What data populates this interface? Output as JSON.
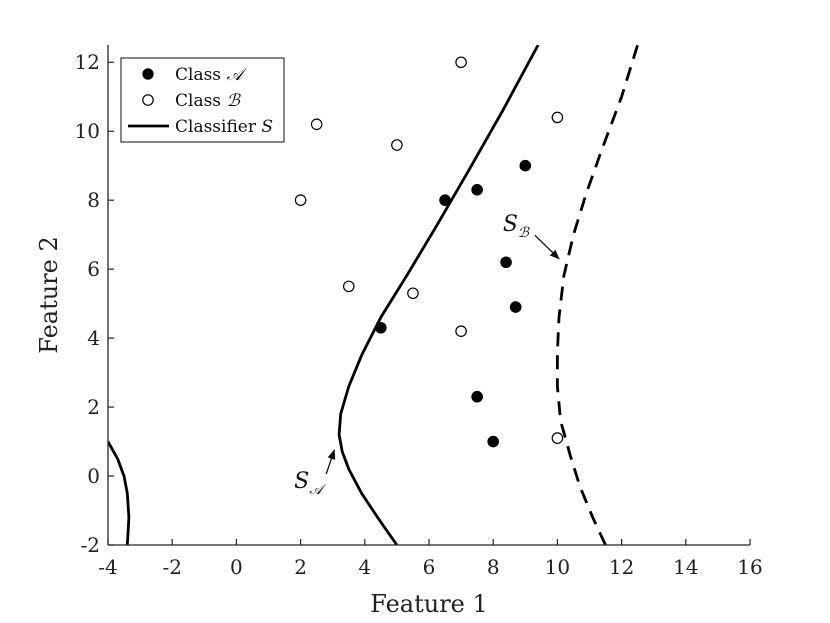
{
  "chart_data": {
    "type": "scatter",
    "xlabel": "Feature 1",
    "ylabel": "Feature 2",
    "xlim": [
      -4,
      16
    ],
    "ylim": [
      -2,
      12.5
    ],
    "xticks": [
      "-4",
      "-2",
      "0",
      "2",
      "4",
      "6",
      "8",
      "10",
      "12",
      "14",
      "16"
    ],
    "yticks": [
      "-2",
      "0",
      "2",
      "4",
      "6",
      "8",
      "10",
      "12"
    ],
    "legend_position": "top-left",
    "grid": false,
    "series": [
      {
        "name": "Class 𝒜",
        "marker": "filled-circle",
        "x": [
          4.5,
          6.5,
          7.5,
          7.5,
          8.0,
          8.4,
          8.7,
          9.0
        ],
        "y": [
          4.3,
          8.0,
          8.3,
          2.3,
          1.0,
          6.2,
          4.9,
          9.0
        ]
      },
      {
        "name": "Class ℬ",
        "marker": "open-circle",
        "x": [
          2.0,
          2.5,
          3.5,
          5.0,
          5.5,
          7.0,
          7.0,
          10.0,
          10.0
        ],
        "y": [
          8.0,
          10.2,
          5.5,
          9.6,
          5.3,
          12.0,
          4.2,
          10.4,
          1.1
        ]
      },
      {
        "name": "Classifier S",
        "style": "solid-line",
        "x": [
          5.0,
          4.4,
          3.9,
          3.5,
          3.3,
          3.2,
          3.25,
          3.5,
          3.9,
          4.5,
          5.3,
          6.2,
          7.2,
          8.3,
          9.4
        ],
        "y": [
          -2.0,
          -1.2,
          -0.5,
          0.2,
          0.7,
          1.2,
          1.8,
          2.6,
          3.5,
          4.6,
          5.8,
          7.2,
          8.8,
          10.6,
          12.5
        ]
      },
      {
        "style": "solid-line",
        "x": [
          -4.0,
          -3.7,
          -3.5,
          -3.4,
          -3.35,
          -3.4
        ],
        "y": [
          1.0,
          0.5,
          0.0,
          -0.5,
          -1.2,
          -2.0
        ]
      },
      {
        "style": "dashed-line",
        "x": [
          11.5,
          11.1,
          10.7,
          10.4,
          10.1,
          10.0,
          10.0,
          10.05,
          10.2,
          10.5,
          10.9,
          11.4,
          12.0,
          12.5
        ],
        "y": [
          -2.0,
          -1.2,
          -0.3,
          0.6,
          1.6,
          2.6,
          3.6,
          4.6,
          5.8,
          7.0,
          8.2,
          9.5,
          11.0,
          12.5
        ]
      }
    ],
    "legend": [
      {
        "label": "Class ",
        "math": "𝒜"
      },
      {
        "label": "Class ",
        "math": "ℬ"
      },
      {
        "label": "Classifier ",
        "math": "S"
      }
    ],
    "annotations": [
      {
        "text": "S",
        "sub": "𝒜",
        "x": 1.8,
        "y": -0.35,
        "arrow_to": [
          3.05,
          0.75
        ]
      },
      {
        "text": "S",
        "sub": "ℬ",
        "x": 8.3,
        "y": 7.1,
        "arrow_to": [
          10.05,
          6.3
        ]
      }
    ]
  }
}
